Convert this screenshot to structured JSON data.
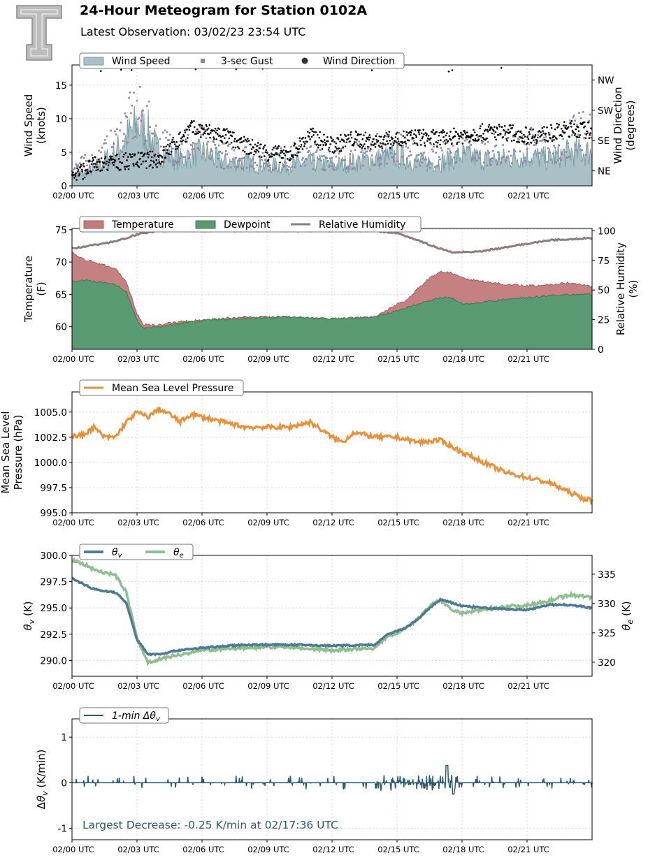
{
  "header": {
    "title": "24-Hour Meteogram for Station 0102A",
    "subtitle": "Latest Observation: 03/02/23 23:54 UTC",
    "logo_name": "tt-logo"
  },
  "colors": {
    "wind_speed": "#7d9ea6",
    "gust": "#8f86a6",
    "wind_dir": "#000000",
    "temperature": "#c27a7a",
    "dewpoint": "#5a9a72",
    "rh": "#917c7c",
    "pressure": "#e8913a",
    "theta_v": "#4e7a95",
    "theta_e": "#8fbf8f",
    "dtheta": "#2e5a6e"
  },
  "chart_data": [
    {
      "id": "wind",
      "type": "area",
      "x_ticks": [
        "02/00 UTC",
        "02/03 UTC",
        "02/06 UTC",
        "02/09 UTC",
        "02/12 UTC",
        "02/15 UTC",
        "02/18 UTC",
        "02/21 UTC"
      ],
      "x_range_hours": [
        0,
        24
      ],
      "ylabel": "Wind Speed\n(knots)",
      "ylim": [
        0,
        18
      ],
      "y_ticks": [
        "0",
        "5",
        "10",
        "15"
      ],
      "y_tick_values": [
        0,
        5,
        10,
        15
      ],
      "y2label": "Wind Direction\n(degrees)",
      "y2_ticks": [
        "NE",
        "SE",
        "SW",
        "NW"
      ],
      "y2_tick_values": [
        45,
        135,
        225,
        315
      ],
      "y2lim": [
        0,
        360
      ],
      "legend": [
        "Wind Speed",
        "3-sec Gust",
        "Wind Direction"
      ],
      "series": [
        {
          "name": "Wind Speed",
          "x": [
            0,
            1,
            2,
            2.5,
            3,
            3.5,
            4,
            5,
            6,
            7,
            8,
            9,
            10,
            11,
            12,
            13,
            14,
            15,
            16,
            17,
            18,
            19,
            20,
            21,
            22,
            23,
            24
          ],
          "values": [
            1.5,
            2.5,
            5,
            7,
            9,
            8,
            5,
            4,
            5,
            3.5,
            3.5,
            3,
            3,
            3.5,
            3,
            3.5,
            4,
            4.5,
            3.5,
            3.5,
            4.5,
            4,
            4,
            4.5,
            4,
            5,
            5
          ]
        },
        {
          "name": "3-sec Gust",
          "x": [
            0,
            1,
            2,
            2.5,
            3,
            3.5,
            4,
            5,
            6,
            7,
            8,
            9,
            10,
            11,
            12,
            13,
            14,
            15,
            16,
            17,
            18,
            19,
            20,
            21,
            22,
            23,
            24
          ],
          "values": [
            3,
            4,
            7,
            10,
            12,
            10,
            7,
            6,
            7,
            5,
            5,
            4.5,
            4.5,
            5,
            4.5,
            5,
            6,
            6.5,
            5,
            5,
            6.5,
            6,
            6,
            7,
            6,
            8,
            9
          ]
        },
        {
          "name": "Wind Direction",
          "x": [
            0,
            1,
            2,
            3,
            4,
            5,
            5.5,
            6,
            7,
            8,
            9,
            10,
            11,
            12,
            13,
            14,
            15,
            16,
            17,
            18,
            19,
            20,
            21,
            22,
            23,
            24
          ],
          "values": [
            30,
            60,
            70,
            75,
            80,
            140,
            170,
            165,
            150,
            120,
            100,
            90,
            150,
            120,
            140,
            130,
            140,
            145,
            140,
            150,
            160,
            160,
            150,
            155,
            170,
            165
          ]
        }
      ]
    },
    {
      "id": "temp",
      "type": "area",
      "x_ticks": [
        "02/00 UTC",
        "02/03 UTC",
        "02/06 UTC",
        "02/09 UTC",
        "02/12 UTC",
        "02/15 UTC",
        "02/18 UTC",
        "02/21 UTC"
      ],
      "x_range_hours": [
        0,
        24
      ],
      "ylabel": "Temperature\n(F)",
      "ylim": [
        56.5,
        75.2
      ],
      "y_ticks": [
        "60",
        "65",
        "70",
        "75"
      ],
      "y_tick_values": [
        60,
        65,
        70,
        75
      ],
      "y2label": "Relative Humidity\n(%)",
      "y2_ticks": [
        "0",
        "25",
        "50",
        "75",
        "100"
      ],
      "y2_tick_values": [
        0,
        25,
        50,
        75,
        100
      ],
      "y2lim": [
        0,
        102
      ],
      "legend": [
        "Temperature",
        "Dewpoint",
        "Relative Humidity"
      ],
      "series": [
        {
          "name": "Temperature",
          "x": [
            0,
            0.5,
            1,
            1.5,
            2,
            2.5,
            3,
            3.3,
            4,
            5,
            6,
            8,
            10,
            12,
            14,
            14.5,
            15,
            15.5,
            16,
            16.5,
            17,
            17.5,
            18,
            19,
            20,
            21,
            22,
            23,
            24
          ],
          "values": [
            71.5,
            70.5,
            70,
            69.5,
            69,
            67,
            62,
            60.3,
            60.3,
            60.8,
            61,
            61.5,
            61.5,
            61.2,
            61.5,
            62.5,
            63.5,
            64.2,
            66,
            67.5,
            68.5,
            68.3,
            67.5,
            67,
            66.5,
            66.3,
            66.5,
            66.8,
            66.2
          ]
        },
        {
          "name": "Dewpoint",
          "x": [
            0,
            0.5,
            1,
            1.5,
            2,
            2.5,
            3,
            3.3,
            4,
            5,
            6,
            8,
            10,
            12,
            14,
            14.5,
            15,
            15.5,
            16,
            16.5,
            17,
            17.5,
            18,
            19,
            20,
            21,
            22,
            23,
            24
          ],
          "values": [
            67,
            67.2,
            67,
            66.8,
            66.5,
            65.5,
            61,
            59.7,
            60,
            60.5,
            61,
            61.3,
            61.5,
            61.2,
            61.5,
            62,
            62.5,
            63,
            63.5,
            64,
            64.5,
            64.5,
            63.5,
            63.8,
            64.2,
            64.5,
            64.8,
            65,
            65
          ]
        },
        {
          "name": "Relative Humidity",
          "x": [
            0,
            1,
            2,
            3,
            4,
            5,
            6,
            8,
            10,
            12,
            14,
            15,
            16,
            16.5,
            17,
            17.5,
            18,
            19,
            20,
            21,
            22,
            23,
            24
          ],
          "values": [
            85,
            88,
            91,
            97,
            100,
            100,
            100,
            100,
            100,
            100,
            100,
            98,
            92,
            88,
            85,
            82,
            82,
            83,
            86,
            89,
            92,
            93,
            94
          ]
        }
      ]
    },
    {
      "id": "pressure",
      "type": "line",
      "x_ticks": [
        "02/00 UTC",
        "02/03 UTC",
        "02/06 UTC",
        "02/09 UTC",
        "02/12 UTC",
        "02/15 UTC",
        "02/18 UTC",
        "02/21 UTC"
      ],
      "x_range_hours": [
        0,
        24
      ],
      "ylabel": "Mean Sea Level\nPressure (hPa)",
      "ylim": [
        995.0,
        1007.0
      ],
      "y_ticks": [
        "995.0",
        "997.5",
        "1000.0",
        "1002.5",
        "1005.0"
      ],
      "y_tick_values": [
        995.0,
        997.5,
        1000.0,
        1002.5,
        1005.0
      ],
      "legend": [
        "Mean Sea Level Pressure"
      ],
      "series": [
        {
          "name": "Mean Sea Level Pressure",
          "x": [
            0,
            0.5,
            1,
            1.5,
            2,
            2.5,
            3,
            3.5,
            4,
            4.5,
            5,
            5.5,
            6,
            7,
            8,
            9,
            10,
            11,
            12,
            12.5,
            13,
            14,
            15,
            16,
            17,
            18,
            19,
            20,
            21,
            22,
            23,
            23.5,
            24
          ],
          "values": [
            1002.6,
            1002.7,
            1003.5,
            1002.5,
            1002.5,
            1004.0,
            1005.0,
            1004.5,
            1005.3,
            1004.8,
            1004.0,
            1004.8,
            1004.5,
            1004.0,
            1003.5,
            1003.5,
            1003.5,
            1004.0,
            1002.5,
            1002.0,
            1003.0,
            1002.5,
            1002.5,
            1002.0,
            1002.2,
            1001.0,
            1000.0,
            999.0,
            998.5,
            998.0,
            997.0,
            996.5,
            996.2
          ]
        }
      ]
    },
    {
      "id": "theta",
      "type": "line",
      "x_ticks": [
        "02/00 UTC",
        "02/03 UTC",
        "02/06 UTC",
        "02/09 UTC",
        "02/12 UTC",
        "02/15 UTC",
        "02/18 UTC",
        "02/21 UTC"
      ],
      "x_range_hours": [
        0,
        24
      ],
      "ylabel": "θv (K)",
      "ylim": [
        288.5,
        300.0
      ],
      "y_ticks": [
        "290.0",
        "292.5",
        "295.0",
        "297.5",
        "300.0"
      ],
      "y_tick_values": [
        290.0,
        292.5,
        295.0,
        297.5,
        300.0
      ],
      "y2label": "θe (K)",
      "y2_ticks": [
        "320",
        "325",
        "330",
        "335"
      ],
      "y2_tick_values": [
        320,
        325,
        330,
        335
      ],
      "y2lim": [
        317.6,
        338.2
      ],
      "legend": [
        "θv",
        "θe"
      ],
      "series": [
        {
          "name": "θv",
          "axis": "left",
          "x": [
            0,
            0.5,
            1,
            1.5,
            2,
            2.5,
            3,
            3.5,
            4,
            5,
            6,
            8,
            10,
            12,
            14,
            14.5,
            15,
            15.5,
            16,
            16.5,
            17,
            17.5,
            18,
            19,
            20,
            21,
            22,
            23,
            24
          ],
          "values": [
            297.8,
            297.3,
            296.8,
            296.6,
            296.5,
            295.5,
            292.0,
            290.6,
            290.6,
            291.0,
            291.2,
            291.5,
            291.5,
            291.4,
            291.5,
            292.4,
            292.8,
            293.2,
            294.0,
            295.0,
            295.8,
            295.5,
            295.2,
            295.0,
            294.9,
            294.8,
            295.3,
            295.3,
            295.0
          ]
        },
        {
          "name": "θe",
          "axis": "right",
          "x": [
            0,
            0.5,
            1,
            1.5,
            2,
            2.5,
            3,
            3.5,
            4,
            5,
            6,
            8,
            10,
            12,
            14,
            14.5,
            15,
            15.5,
            16,
            16.5,
            17,
            17.5,
            18,
            19,
            20,
            21,
            22,
            23,
            24
          ],
          "values": [
            337.5,
            336.8,
            335.8,
            335.3,
            334.8,
            332.0,
            324.0,
            320.0,
            320.5,
            321.3,
            322.0,
            322.5,
            322.6,
            322.0,
            322.4,
            324.2,
            325.0,
            326.0,
            327.5,
            329.5,
            330.6,
            329.0,
            328.3,
            329.0,
            329.5,
            329.7,
            330.5,
            331.5,
            331.0
          ]
        }
      ]
    },
    {
      "id": "dtheta",
      "type": "line",
      "x_ticks": [
        "02/00 UTC",
        "02/03 UTC",
        "02/06 UTC",
        "02/09 UTC",
        "02/12 UTC",
        "02/15 UTC",
        "02/18 UTC",
        "02/21 UTC"
      ],
      "x_range_hours": [
        0,
        24
      ],
      "ylabel": "Δθv (K/min)",
      "ylim": [
        -1.25,
        1.4
      ],
      "y_ticks": [
        "-1",
        "0",
        "1"
      ],
      "y_tick_values": [
        -1,
        0,
        1
      ],
      "legend": [
        "1-min Δθv"
      ],
      "annotation": "Largest Decrease: -0.25 K/min at 02/17:36 UTC",
      "series": [
        {
          "name": "1-min Δθv",
          "x": [
            0,
            24
          ],
          "values": [
            0,
            0
          ]
        }
      ]
    }
  ]
}
